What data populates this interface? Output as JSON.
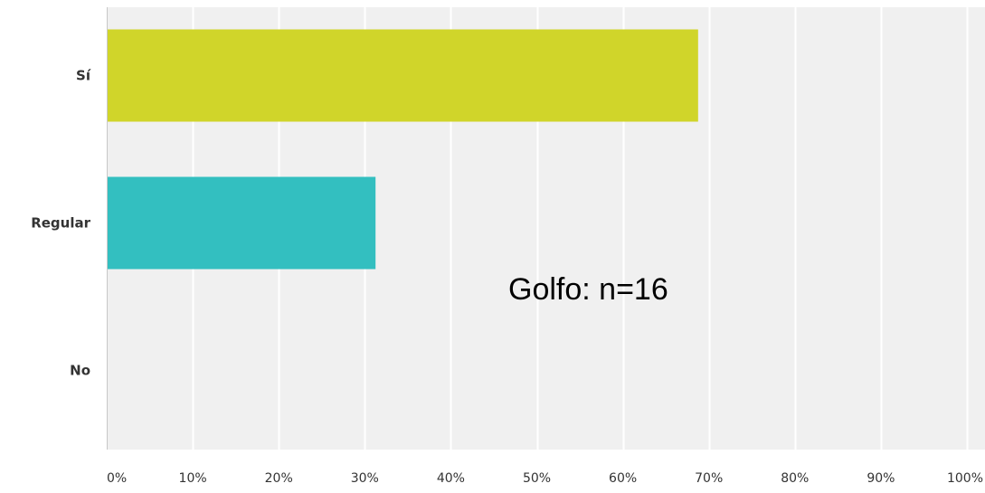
{
  "chart_data": {
    "type": "bar",
    "orientation": "horizontal",
    "categories": [
      "Sí",
      "Regular",
      "No"
    ],
    "values": [
      68.75,
      31.25,
      0
    ],
    "xlim": [
      0,
      100
    ],
    "xticks": [
      0,
      10,
      20,
      30,
      40,
      50,
      60,
      70,
      80,
      90,
      100
    ],
    "tick_labels": [
      "0%",
      "10%",
      "20%",
      "30%",
      "40%",
      "50%",
      "60%",
      "70%",
      "80%",
      "90%",
      "100%"
    ],
    "grid": true,
    "legend": "none",
    "bar_colors": [
      "#d0d52a",
      "#33bfc0",
      "#cccccc"
    ],
    "annotation": "Golfo: n=16",
    "title": "",
    "xlabel": "",
    "ylabel": ""
  },
  "colors": {
    "plot_background": "#f0f0f0",
    "gridline": "#ffffff",
    "axis": "#c8c8c8"
  }
}
